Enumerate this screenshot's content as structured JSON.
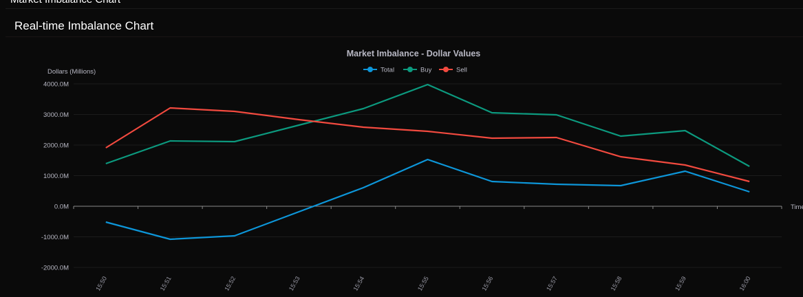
{
  "page": {
    "heading": "Market Imbalance Chart",
    "card_title": "Real-time Imbalance Chart"
  },
  "chart_data": {
    "type": "line",
    "title": "Market Imbalance - Dollar Values",
    "xlabel": "Time",
    "ylabel": "Dollars (Millions)",
    "categories": [
      "15:50",
      "15:51",
      "15:52",
      "15:53",
      "15:54",
      "15:55",
      "15:56",
      "15:57",
      "15:58",
      "15:59",
      "16:00"
    ],
    "ylim": [
      -2000,
      4000
    ],
    "yticks": [
      -2000,
      -1000,
      0,
      1000,
      2000,
      3000,
      4000
    ],
    "ytick_suffix": ".0M",
    "grid": true,
    "legend": "top-center",
    "series": [
      {
        "name": "Total",
        "color": "#0d96d9",
        "values": [
          -517,
          -1079,
          -966,
          -180,
          607,
          1528,
          809,
          719,
          674,
          1146,
          472
        ]
      },
      {
        "name": "Buy",
        "color": "#0c9a7f",
        "values": [
          1393,
          2135,
          2112,
          2652,
          3191,
          3978,
          3056,
          2989,
          2292,
          2472,
          1303
        ]
      },
      {
        "name": "Sell",
        "color": "#f24a3f",
        "values": [
          1910,
          3213,
          3101,
          2831,
          2584,
          2449,
          2225,
          2247,
          1618,
          1348,
          809
        ]
      }
    ]
  }
}
